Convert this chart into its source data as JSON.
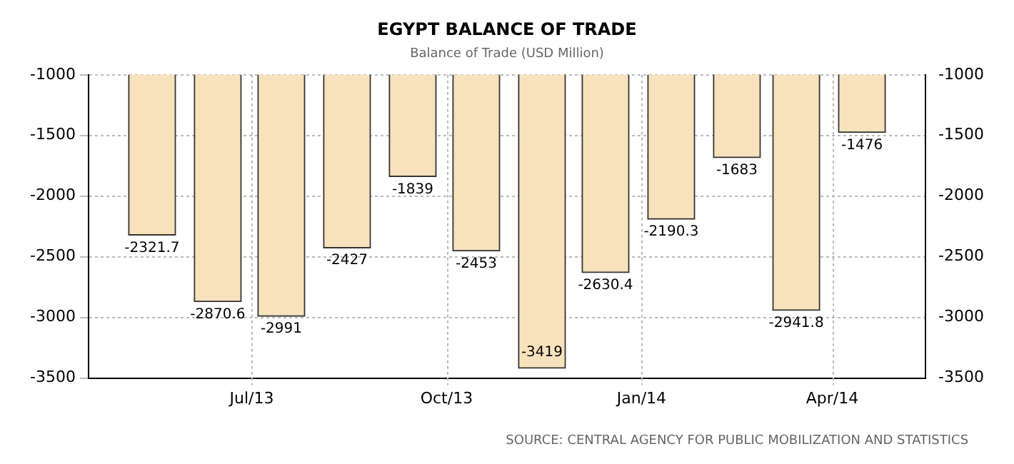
{
  "chart_data": {
    "type": "bar",
    "title": "EGYPT BALANCE OF TRADE",
    "subtitle": "Balance of Trade (USD Million)",
    "x": [
      "2013-05-15",
      "2013-06-15",
      "2013-07-15",
      "2013-08-15",
      "2013-09-15",
      "2013-10-15",
      "2013-11-15",
      "2013-12-15",
      "2014-01-15",
      "2014-02-15",
      "2014-03-15",
      "2014-04-15"
    ],
    "values": [
      -2321.7,
      -2870.6,
      -2991,
      -2427,
      -1839,
      -2453,
      -3419,
      -2630.4,
      -2190.3,
      -1683,
      -2941.8,
      -1476
    ],
    "color": "#f7e2bd",
    "data_labels": true,
    "xlim": [
      "2013-04-15",
      "2014-05-15"
    ],
    "xticks": [
      {
        "value": "2013-07-01",
        "label": "Jul/13"
      },
      {
        "value": "2013-10-01",
        "label": "Oct/13"
      },
      {
        "value": "2014-01-01",
        "label": "Jan/14"
      },
      {
        "value": "2014-04-01",
        "label": "Apr/14"
      }
    ],
    "ylim": [
      -3500,
      -1000
    ],
    "yticks": [
      -3500,
      -3000,
      -2500,
      -2000,
      -1500,
      -1000
    ],
    "y2lim": [
      -3500,
      -1000
    ],
    "y2ticks": [
      -3500,
      -3000,
      -2500,
      -2000,
      -1500,
      -1000
    ],
    "grid": true,
    "legend": false,
    "annotations": [
      "SOURCE: CENTRAL AGENCY FOR PUBLIC MOBILIZATION AND STATISTICS"
    ]
  }
}
